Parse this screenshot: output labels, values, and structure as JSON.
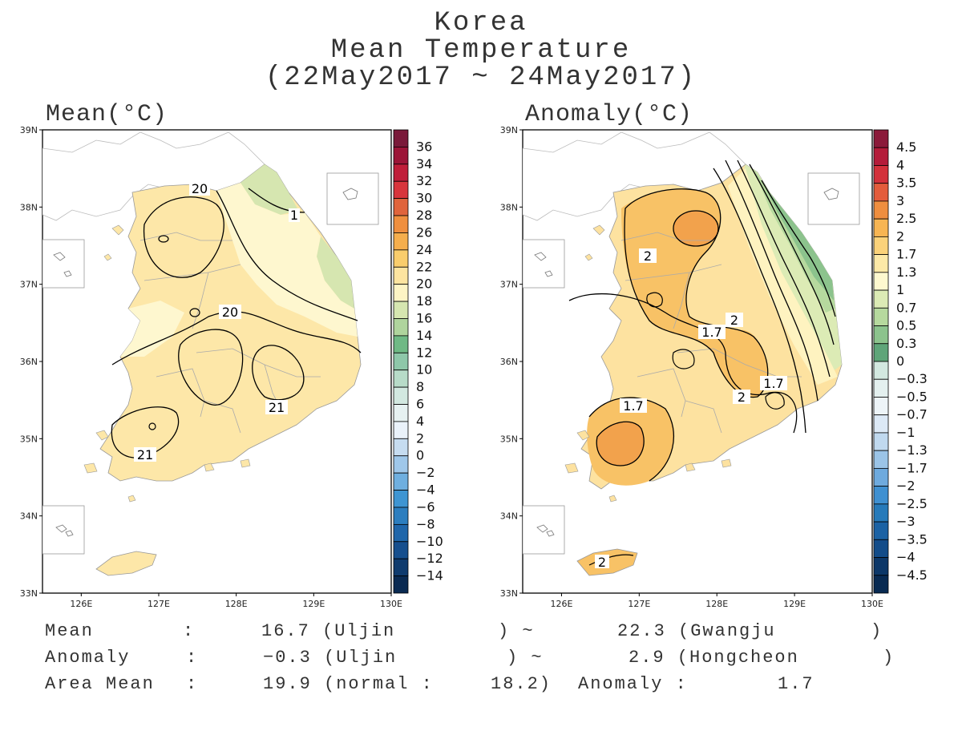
{
  "title": {
    "line1": "Korea",
    "line2": "Mean Temperature",
    "line3": "(22May2017 ~ 24May2017)"
  },
  "left_panel": {
    "label": "Mean(°C)",
    "lat_ticks": [
      "39N",
      "38N",
      "37N",
      "36N",
      "35N",
      "34N",
      "33N"
    ],
    "lon_ticks": [
      "126E",
      "127E",
      "128E",
      "129E",
      "130E"
    ],
    "contour_labels": [
      "20",
      "1",
      "20",
      "21",
      "21"
    ],
    "colorbar": {
      "labels": [
        "36",
        "34",
        "32",
        "30",
        "28",
        "26",
        "24",
        "22",
        "20",
        "18",
        "16",
        "14",
        "12",
        "10",
        "8",
        "6",
        "4",
        "2",
        "0",
        "−2",
        "−4",
        "−6",
        "−8",
        "−10",
        "−12",
        "−14"
      ],
      "colors": [
        "#7a1a3a",
        "#9c1538",
        "#c01e3a",
        "#d8353c",
        "#e0643c",
        "#ef8f3f",
        "#f5ae4d",
        "#f9cd6c",
        "#fde4a0",
        "#fdf4c4",
        "#d6e6b0",
        "#afd49d",
        "#6fb985",
        "#8ec7a9",
        "#b7dbc8",
        "#d2e8e0",
        "#e6f1f1",
        "#eaf2fa",
        "#c6dcf0",
        "#9fc7e9",
        "#6fafdf",
        "#3e95d2",
        "#2c7ebf",
        "#1f66aa",
        "#164f8e",
        "#0f3b6e",
        "#0a2a52"
      ]
    }
  },
  "right_panel": {
    "label": "Anomaly(°C)",
    "lat_ticks": [
      "39N",
      "38N",
      "37N",
      "36N",
      "35N",
      "34N",
      "33N"
    ],
    "lon_ticks": [
      "126E",
      "127E",
      "128E",
      "129E",
      "130E"
    ],
    "contour_labels": [
      "2",
      "1.7",
      "2",
      "2",
      "1.7",
      "1.7",
      "2"
    ],
    "colorbar": {
      "labels": [
        "4.5",
        "4",
        "3.5",
        "3",
        "2.5",
        "2",
        "1.7",
        "1.3",
        "1",
        "0.7",
        "0.5",
        "0.3",
        "0",
        "−0.3",
        "−0.5",
        "−0.7",
        "−1",
        "−1.3",
        "−1.7",
        "−2",
        "−2.5",
        "−3",
        "−3.5",
        "−4",
        "−4.5"
      ],
      "colors": [
        "#8b1a3a",
        "#b41c3a",
        "#d3313b",
        "#e35c3c",
        "#ef8e3f",
        "#f7b553",
        "#fbd27a",
        "#fde9a7",
        "#fef8cf",
        "#dcebb5",
        "#b6d99e",
        "#8cc38d",
        "#5fa579",
        "#d3e8e0",
        "#e4f0ef",
        "#edf4f8",
        "#dce9f6",
        "#c0d9ef",
        "#9bc4e7",
        "#6eaade",
        "#3f90d1",
        "#267aba",
        "#1b62a4",
        "#124c89",
        "#0c3768",
        "#082a52"
      ]
    }
  },
  "stats": {
    "mean_label": "Mean",
    "mean_min": "16.7 (Uljin",
    "mean_max": "22.3 (Gwangju",
    "anom_label": "Anomaly",
    "anom_min": "−0.3 (Uljin",
    "anom_max": "2.9 (Hongcheon",
    "area_label": "Area Mean",
    "area_mean": "19.9 (normal :",
    "normal": "18.2)",
    "area_anom_label": "Anomaly :",
    "area_anom": "1.7"
  }
}
